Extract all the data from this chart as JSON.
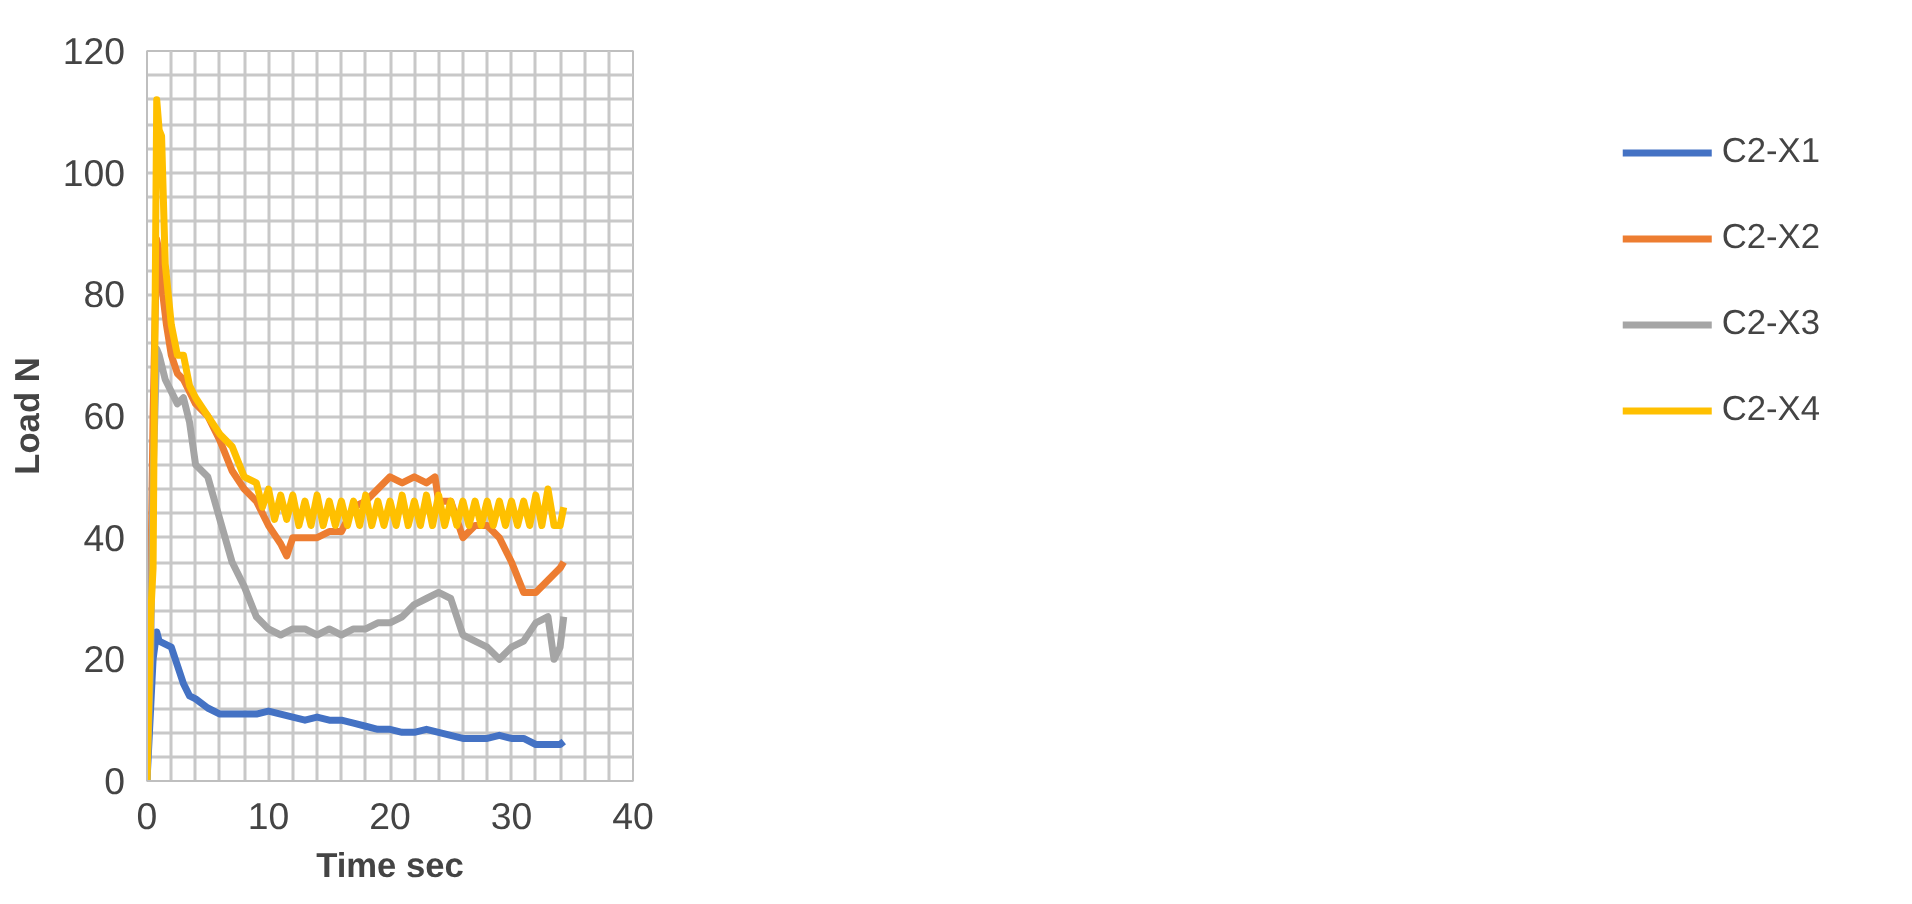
{
  "chart_data": {
    "type": "line",
    "xlabel": "Time sec",
    "ylabel": "Load N",
    "xlim": [
      0,
      40
    ],
    "ylim": [
      0,
      120
    ],
    "xticks": [
      0,
      {
        "value": 2,
        "label": null
      },
      {
        "value": 4,
        "label": null
      },
      {
        "value": 6,
        "label": null
      },
      {
        "value": 8,
        "label": null
      },
      10,
      {
        "value": 12,
        "label": null
      },
      {
        "value": 14,
        "label": null
      },
      {
        "value": 16,
        "label": null
      },
      {
        "value": 18,
        "label": null
      },
      20,
      {
        "value": 22,
        "label": null
      },
      {
        "value": 24,
        "label": null
      },
      {
        "value": 26,
        "label": null
      },
      {
        "value": 28,
        "label": null
      },
      30,
      {
        "value": 32,
        "label": null
      },
      {
        "value": 34,
        "label": null
      },
      {
        "value": 36,
        "label": null
      },
      {
        "value": 38,
        "label": null
      },
      40
    ],
    "yticks": [
      0,
      {
        "value": 4,
        "label": null
      },
      {
        "value": 8,
        "label": null
      },
      {
        "value": 12,
        "label": null
      },
      {
        "value": 16,
        "label": null
      },
      20,
      {
        "value": 24,
        "label": null
      },
      {
        "value": 28,
        "label": null
      },
      {
        "value": 32,
        "label": null
      },
      {
        "value": 36,
        "label": null
      },
      40,
      {
        "value": 44,
        "label": null
      },
      {
        "value": 48,
        "label": null
      },
      {
        "value": 52,
        "label": null
      },
      {
        "value": 56,
        "label": null
      },
      60,
      {
        "value": 64,
        "label": null
      },
      {
        "value": 68,
        "label": null
      },
      {
        "value": 72,
        "label": null
      },
      {
        "value": 76,
        "label": null
      },
      80,
      {
        "value": 84,
        "label": null
      },
      {
        "value": 88,
        "label": null
      },
      {
        "value": 92,
        "label": null
      },
      {
        "value": 96,
        "label": null
      },
      100,
      {
        "value": 104,
        "label": null
      },
      {
        "value": 108,
        "label": null
      },
      {
        "value": 112,
        "label": null
      },
      {
        "value": 116,
        "label": null
      },
      120
    ],
    "grid": true,
    "legend": "right",
    "marker": "none",
    "line_style": "solid",
    "series": [
      {
        "name": "C2-X1",
        "color": "#4472c4",
        "x": [
          0,
          0.3,
          0.5,
          0.8,
          1,
          1.5,
          2,
          2.5,
          3,
          3.5,
          4,
          5,
          6,
          7,
          8,
          9,
          10,
          11,
          12,
          13,
          14,
          15,
          16,
          17,
          18,
          19,
          20,
          21,
          22,
          23,
          24,
          25,
          26,
          27,
          28,
          29,
          30,
          31,
          32,
          33,
          34,
          34.3
        ],
        "values": [
          0,
          12,
          20,
          24.5,
          23,
          22.5,
          22,
          19,
          16,
          14,
          13.5,
          12,
          11,
          11,
          11,
          11,
          11.5,
          11,
          10.5,
          10,
          10.5,
          10,
          10,
          9.5,
          9,
          8.5,
          8.5,
          8,
          8,
          8.5,
          8,
          7.5,
          7,
          7,
          7,
          7.5,
          7,
          7,
          6,
          6,
          6,
          6.5
        ]
      },
      {
        "name": "C2-X2",
        "color": "#ed7d31",
        "x": [
          0,
          0.3,
          0.5,
          0.8,
          1,
          1.3,
          1.6,
          2,
          2.5,
          3,
          3.5,
          4,
          5,
          6,
          7,
          8,
          9,
          10,
          11,
          11.5,
          12,
          13,
          14,
          15,
          16,
          17,
          18,
          19,
          20,
          21,
          22,
          23,
          23.7,
          24,
          25,
          26,
          27,
          28,
          29,
          30,
          31,
          32,
          33,
          34,
          34.3
        ],
        "values": [
          28,
          31,
          60,
          89,
          87,
          80,
          75,
          70,
          67,
          66,
          64,
          62,
          60,
          56,
          51,
          48,
          46,
          42,
          39,
          37,
          40,
          40,
          40,
          41,
          41,
          45,
          46,
          48,
          50,
          49,
          50,
          49,
          50,
          46,
          46,
          40,
          42,
          42,
          40,
          36,
          31,
          31,
          33,
          35,
          36
        ]
      },
      {
        "name": "C2-X3",
        "color": "#a5a5a5",
        "x": [
          0,
          0.3,
          0.5,
          0.8,
          1,
          1.5,
          2,
          2.5,
          3,
          3.5,
          4,
          5,
          6,
          7,
          8,
          9,
          10,
          11,
          12,
          13,
          14,
          15,
          16,
          17,
          18,
          19,
          20,
          21,
          22,
          23,
          24,
          25,
          26,
          27,
          28,
          29,
          30,
          31,
          32,
          33,
          33.5,
          34,
          34.3
        ],
        "values": [
          0,
          20,
          50,
          71,
          70,
          66,
          64,
          62,
          63,
          59,
          52,
          50,
          43,
          36,
          32,
          27,
          25,
          24,
          25,
          25,
          24,
          25,
          24,
          25,
          25,
          26,
          26,
          27,
          29,
          30,
          31,
          30,
          24,
          23,
          22,
          20,
          22,
          23,
          26,
          27,
          20,
          22,
          27
        ]
      },
      {
        "name": "C2-X4",
        "color": "#ffc000",
        "x": [
          0,
          0.3,
          0.5,
          0.8,
          1,
          1.2,
          1.5,
          2,
          2.5,
          3,
          3.5,
          4,
          5,
          6,
          7,
          8,
          9,
          9.5,
          10,
          10.5,
          11,
          11.5,
          12,
          12.5,
          13,
          13.5,
          14,
          14.5,
          15,
          15.5,
          16,
          16.5,
          17,
          17.5,
          18,
          18.5,
          19,
          19.5,
          20,
          20.5,
          21,
          21.5,
          22,
          22.5,
          23,
          23.5,
          24,
          24.5,
          25,
          25.5,
          26,
          26.5,
          27,
          27.5,
          28,
          28.5,
          29,
          29.5,
          30,
          30.5,
          31,
          31.5,
          32,
          32.5,
          33,
          33.5,
          34,
          34.3
        ],
        "values": [
          0,
          27,
          35,
          112,
          107,
          106,
          85,
          75,
          70,
          70,
          65,
          63,
          60,
          57,
          55,
          50,
          49,
          45,
          48,
          43,
          47,
          43,
          47,
          42,
          46,
          42,
          47,
          42,
          46,
          42,
          46,
          42,
          46,
          42,
          47,
          42,
          46,
          42,
          46,
          42,
          47,
          42,
          46,
          42,
          47,
          42,
          47,
          42,
          46,
          42,
          46,
          42,
          46,
          42,
          46,
          42,
          46,
          42,
          46,
          42,
          46,
          42,
          47,
          42,
          48,
          42,
          42,
          45
        ]
      }
    ]
  }
}
